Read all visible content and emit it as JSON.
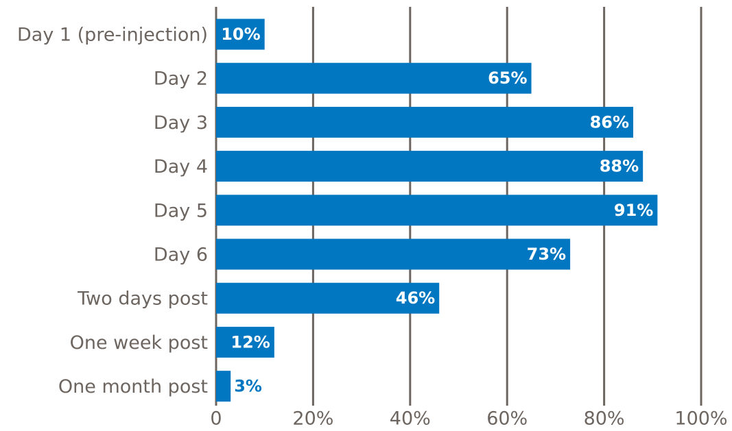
{
  "chart_data": {
    "type": "bar",
    "orientation": "horizontal",
    "categories": [
      "Day 1 (pre-injection)",
      "Day 2",
      "Day 3",
      "Day 4",
      "Day 5",
      "Day 6",
      "Two days post",
      "One week post",
      "One month post"
    ],
    "values": [
      10,
      65,
      86,
      88,
      91,
      73,
      46,
      12,
      3
    ],
    "value_labels": [
      "10%",
      "65%",
      "86%",
      "88%",
      "91%",
      "73%",
      "46%",
      "12%",
      "3%"
    ],
    "color": "#0077c0",
    "xlim": [
      0,
      100
    ],
    "xticks": [
      0,
      {
        "value": 20,
        "label": "20%"
      },
      {
        "value": 40,
        "label": "40%"
      },
      {
        "value": 60,
        "label": "60%"
      },
      {
        "value": 80,
        "label": "80%"
      },
      {
        "value": 100,
        "label": "100%"
      }
    ],
    "grid": true
  }
}
